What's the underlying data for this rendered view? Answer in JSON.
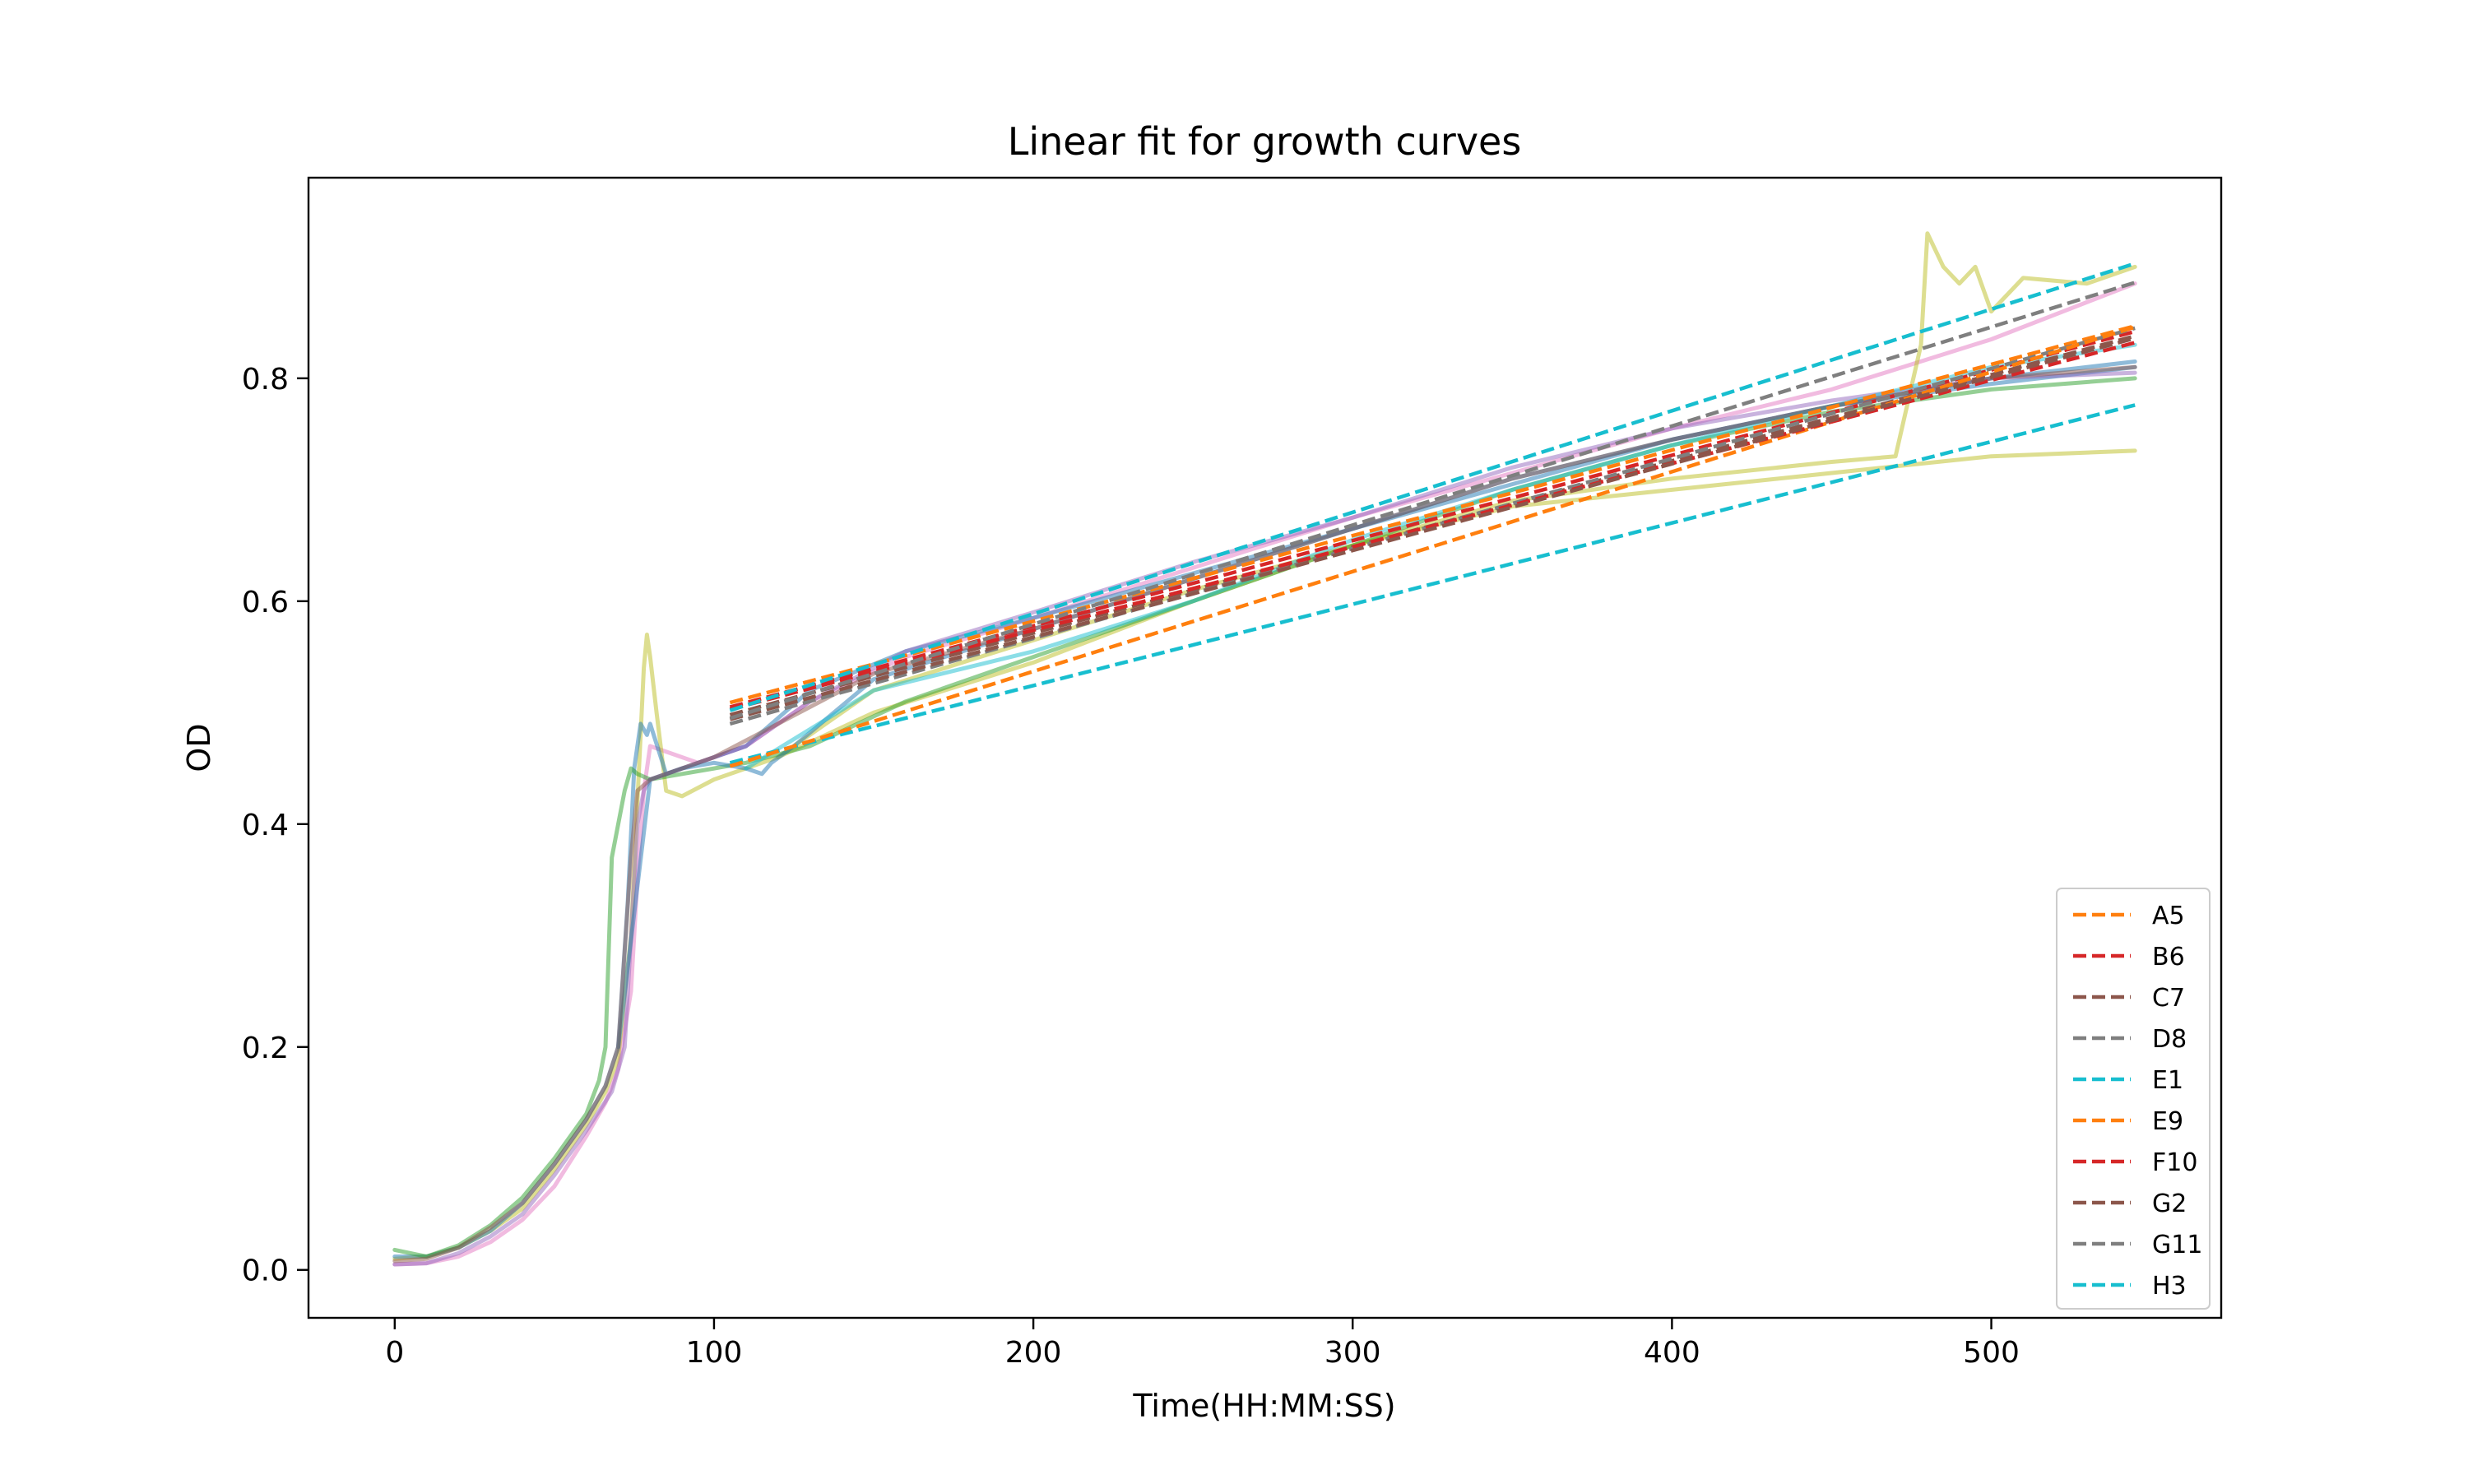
{
  "chart_data": {
    "type": "line",
    "title": "Linear fit for growth curves",
    "xlabel": "Time(HH:MM:SS)",
    "ylabel": "OD",
    "xlim": [
      -27,
      572
    ],
    "ylim": [
      -0.043,
      0.98
    ],
    "xticks": [
      0,
      100,
      200,
      300,
      400,
      500
    ],
    "yticks": [
      0.0,
      0.2,
      0.4,
      0.6,
      0.8
    ],
    "xtick_labels": [
      "0",
      "100",
      "200",
      "300",
      "400",
      "500"
    ],
    "ytick_labels": [
      "0.0",
      "0.2",
      "0.4",
      "0.6",
      "0.8"
    ],
    "grid": false,
    "legend_placement": "lower-right",
    "curves": [
      {
        "color": "#e377c2",
        "x": [
          0,
          10,
          20,
          30,
          40,
          50,
          60,
          66,
          70,
          74,
          76,
          78,
          80,
          85,
          95,
          110,
          130,
          160,
          200,
          250,
          300,
          350,
          400,
          450,
          500,
          545
        ],
        "y": [
          0.005,
          0.006,
          0.012,
          0.025,
          0.045,
          0.075,
          0.12,
          0.15,
          0.18,
          0.25,
          0.35,
          0.43,
          0.47,
          0.465,
          0.455,
          0.47,
          0.51,
          0.55,
          0.585,
          0.63,
          0.675,
          0.715,
          0.755,
          0.79,
          0.835,
          0.885
        ]
      },
      {
        "color": "#bcbd22",
        "x": [
          0,
          10,
          20,
          30,
          40,
          50,
          60,
          66,
          70,
          74,
          76,
          78,
          79,
          80,
          82,
          85,
          90,
          100,
          120,
          150,
          200,
          250,
          300,
          350,
          400,
          450,
          470,
          478,
          480,
          485,
          490,
          495,
          500,
          510,
          530,
          545
        ],
        "y": [
          0.01,
          0.012,
          0.02,
          0.035,
          0.055,
          0.09,
          0.13,
          0.16,
          0.19,
          0.3,
          0.42,
          0.54,
          0.57,
          0.55,
          0.5,
          0.43,
          0.425,
          0.44,
          0.46,
          0.5,
          0.545,
          0.6,
          0.65,
          0.69,
          0.71,
          0.725,
          0.73,
          0.83,
          0.93,
          0.9,
          0.885,
          0.9,
          0.86,
          0.89,
          0.885,
          0.9
        ]
      },
      {
        "color": "#bcbd22",
        "x": [
          120,
          150,
          200,
          250,
          300,
          350,
          400,
          450,
          500,
          545
        ],
        "y": [
          0.46,
          0.52,
          0.565,
          0.61,
          0.65,
          0.685,
          0.7,
          0.715,
          0.73,
          0.735
        ]
      },
      {
        "color": "#1f77b4",
        "x": [
          0,
          10,
          20,
          30,
          40,
          50,
          60,
          66,
          70,
          73,
          75,
          77,
          79,
          80,
          85,
          95,
          110,
          130,
          160,
          200,
          250,
          300,
          350,
          400,
          450,
          500,
          545
        ],
        "y": [
          0.012,
          0.012,
          0.02,
          0.035,
          0.06,
          0.095,
          0.135,
          0.165,
          0.2,
          0.33,
          0.45,
          0.49,
          0.48,
          0.49,
          0.445,
          0.455,
          0.47,
          0.52,
          0.555,
          0.585,
          0.625,
          0.665,
          0.71,
          0.745,
          0.775,
          0.795,
          0.81
        ]
      },
      {
        "color": "#2ca02c",
        "x": [
          0,
          10,
          20,
          30,
          40,
          50,
          60,
          64,
          66,
          68,
          70,
          72,
          74,
          76,
          80,
          90,
          100,
          110,
          130,
          160,
          200,
          250,
          300,
          350,
          400,
          450,
          500,
          545
        ],
        "y": [
          0.018,
          0.012,
          0.022,
          0.04,
          0.065,
          0.1,
          0.14,
          0.17,
          0.2,
          0.37,
          0.4,
          0.43,
          0.45,
          0.445,
          0.44,
          0.445,
          0.45,
          0.455,
          0.47,
          0.51,
          0.55,
          0.6,
          0.65,
          0.7,
          0.74,
          0.77,
          0.79,
          0.8
        ]
      },
      {
        "color": "#9467bd",
        "x": [
          0,
          10,
          20,
          30,
          40,
          50,
          60,
          68,
          72,
          74,
          76,
          78,
          80,
          90,
          100,
          110,
          130,
          160,
          200,
          250,
          300,
          350,
          400,
          450,
          500,
          545
        ],
        "y": [
          0.005,
          0.006,
          0.015,
          0.03,
          0.05,
          0.085,
          0.125,
          0.16,
          0.2,
          0.3,
          0.4,
          0.43,
          0.44,
          0.45,
          0.46,
          0.47,
          0.51,
          0.555,
          0.59,
          0.635,
          0.675,
          0.72,
          0.755,
          0.78,
          0.8,
          0.805
        ]
      },
      {
        "color": "#1f77b4",
        "x": [
          70,
          80,
          90,
          100,
          110,
          115,
          118,
          125,
          150,
          200,
          250,
          300,
          350,
          400,
          450,
          500,
          545
        ],
        "y": [
          0.2,
          0.44,
          0.45,
          0.455,
          0.45,
          0.445,
          0.455,
          0.47,
          0.53,
          0.575,
          0.62,
          0.665,
          0.705,
          0.745,
          0.775,
          0.8,
          0.815
        ]
      },
      {
        "color": "#17becf",
        "x": [
          110,
          150,
          200,
          250,
          300,
          350,
          400,
          450,
          500,
          545
        ],
        "y": [
          0.45,
          0.52,
          0.555,
          0.6,
          0.655,
          0.7,
          0.74,
          0.775,
          0.81,
          0.83
        ]
      },
      {
        "color": "#8c564b",
        "x": [
          0,
          10,
          20,
          30,
          40,
          50,
          60,
          66,
          70,
          74,
          76,
          80,
          90,
          100,
          120,
          150,
          200,
          250,
          300,
          350,
          400,
          450,
          500,
          545
        ],
        "y": [
          0.008,
          0.01,
          0.02,
          0.038,
          0.06,
          0.095,
          0.135,
          0.165,
          0.2,
          0.37,
          0.43,
          0.44,
          0.45,
          0.46,
          0.49,
          0.535,
          0.575,
          0.62,
          0.665,
          0.71,
          0.745,
          0.775,
          0.8,
          0.81
        ]
      }
    ],
    "series": [
      {
        "name": "A5",
        "color": "#ff7f0e",
        "x": [
          105,
          545
        ],
        "y": [
          0.509,
          0.847
        ]
      },
      {
        "name": "B6",
        "color": "#d62728",
        "x": [
          105,
          545
        ],
        "y": [
          0.505,
          0.842
        ]
      },
      {
        "name": "C7",
        "color": "#8c564b",
        "x": [
          105,
          545
        ],
        "y": [
          0.498,
          0.838
        ]
      },
      {
        "name": "D8",
        "color": "#7f7f7f",
        "x": [
          105,
          545
        ],
        "y": [
          0.49,
          0.845
        ]
      },
      {
        "name": "E1",
        "color": "#17becf",
        "x": [
          105,
          545
        ],
        "y": [
          0.455,
          0.776
        ]
      },
      {
        "name": "E9",
        "color": "#ff7f0e",
        "x": [
          105,
          545
        ],
        "y": [
          0.452,
          0.846
        ]
      },
      {
        "name": "F10",
        "color": "#d62728",
        "x": [
          105,
          545
        ],
        "y": [
          0.503,
          0.832
        ]
      },
      {
        "name": "G2",
        "color": "#8c564b",
        "x": [
          105,
          545
        ],
        "y": [
          0.494,
          0.836
        ]
      },
      {
        "name": "G11",
        "color": "#7f7f7f",
        "x": [
          105,
          545
        ],
        "y": [
          0.495,
          0.886
        ]
      },
      {
        "name": "H3",
        "color": "#17becf",
        "x": [
          105,
          545
        ],
        "y": [
          0.502,
          0.903
        ]
      }
    ]
  }
}
